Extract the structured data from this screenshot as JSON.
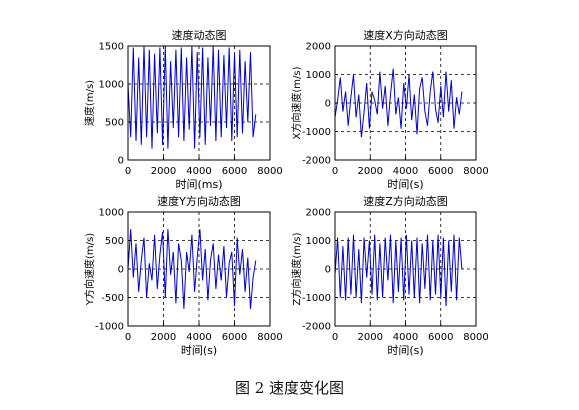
{
  "caption": "图 2  速度变化图",
  "chart_data": [
    {
      "type": "line",
      "title": "速度动态图",
      "xlabel": "时间(ms)",
      "ylabel": "速度(m/s)",
      "xlim": [
        0,
        8000
      ],
      "ylim": [
        0,
        1500
      ],
      "xticks": [
        0,
        2000,
        4000,
        6000,
        8000
      ],
      "yticks": [
        0,
        500,
        1000,
        1500
      ],
      "grid": "dashed",
      "series": [
        {
          "color": "#0000cc",
          "x": [
            0,
            150,
            300,
            450,
            600,
            750,
            900,
            1050,
            1200,
            1350,
            1500,
            1650,
            1800,
            1950,
            2100,
            2250,
            2400,
            2550,
            2700,
            2850,
            3000,
            3150,
            3300,
            3450,
            3600,
            3750,
            3900,
            4050,
            4200,
            4350,
            4500,
            4650,
            4800,
            4950,
            5100,
            5250,
            5400,
            5550,
            5700,
            5850,
            6000,
            6150,
            6300,
            6450,
            6600,
            6750,
            6900,
            7050,
            7200
          ],
          "y": [
            1000,
            300,
            1480,
            250,
            1350,
            200,
            1500,
            300,
            1450,
            150,
            1400,
            350,
            1480,
            200,
            1500,
            150,
            1300,
            420,
            1450,
            300,
            1480,
            250,
            1350,
            400,
            1500,
            150,
            1420,
            300,
            1480,
            200,
            1350,
            450,
            1500,
            250,
            1450,
            300,
            1380,
            420,
            1480,
            250,
            1400,
            300,
            1450,
            350,
            1300,
            500,
            1420,
            300,
            600
          ]
        }
      ]
    },
    {
      "type": "line",
      "title": "速度X方向动态图",
      "xlabel": "时间(s)",
      "ylabel": "X方向速度(m/s)",
      "xlim": [
        0,
        8000
      ],
      "ylim": [
        -2000,
        2000
      ],
      "xticks": [
        0,
        2000,
        4000,
        6000,
        8000
      ],
      "yticks": [
        -2000,
        -1000,
        0,
        1000,
        2000
      ],
      "grid": "dashed",
      "series": [
        {
          "color": "#0000cc",
          "x": [
            0,
            150,
            300,
            450,
            600,
            750,
            900,
            1050,
            1200,
            1350,
            1500,
            1650,
            1800,
            1950,
            2100,
            2250,
            2400,
            2550,
            2700,
            2850,
            3000,
            3150,
            3300,
            3450,
            3600,
            3750,
            3900,
            4050,
            4200,
            4350,
            4500,
            4650,
            4800,
            4950,
            5100,
            5250,
            5400,
            5550,
            5700,
            5850,
            6000,
            6150,
            6300,
            6450,
            6600,
            6750,
            6900,
            7050,
            7200
          ],
          "y": [
            -500,
            100,
            900,
            -300,
            400,
            -800,
            200,
            1000,
            -500,
            300,
            -1200,
            -300,
            700,
            -900,
            400,
            100,
            -400,
            1100,
            -200,
            600,
            -800,
            300,
            1200,
            -400,
            200,
            -900,
            700,
            -200,
            1000,
            -600,
            300,
            -1100,
            500,
            900,
            -300,
            -800,
            400,
            1100,
            -200,
            -700,
            600,
            -500,
            1100,
            -300,
            800,
            -900,
            200,
            -400,
            400
          ]
        }
      ]
    },
    {
      "type": "line",
      "title": "速度Y方向动态图",
      "xlabel": "时间(s)",
      "ylabel": "Y方向速度(m/s)",
      "xlim": [
        0,
        8000
      ],
      "ylim": [
        -1000,
        1000
      ],
      "xticks": [
        0,
        2000,
        4000,
        6000,
        8000
      ],
      "yticks": [
        -1000,
        -500,
        0,
        500,
        1000
      ],
      "grid": "dashed",
      "series": [
        {
          "color": "#0000cc",
          "x": [
            0,
            150,
            300,
            450,
            600,
            750,
            900,
            1050,
            1200,
            1350,
            1500,
            1650,
            1800,
            1950,
            2100,
            2250,
            2400,
            2550,
            2700,
            2850,
            3000,
            3150,
            3300,
            3450,
            3600,
            3750,
            3900,
            4050,
            4200,
            4350,
            4500,
            4650,
            4800,
            4950,
            5100,
            5250,
            5400,
            5550,
            5700,
            5850,
            6000,
            6150,
            6300,
            6450,
            6600,
            6750,
            6900,
            7050,
            7200
          ],
          "y": [
            0,
            700,
            -150,
            450,
            -400,
            150,
            550,
            -500,
            100,
            -200,
            600,
            -350,
            250,
            650,
            -500,
            700,
            -100,
            300,
            -600,
            450,
            150,
            -700,
            300,
            -50,
            600,
            -400,
            200,
            700,
            -200,
            350,
            -550,
            150,
            450,
            -350,
            250,
            -200,
            400,
            -500,
            100,
            300,
            -650,
            550,
            -100,
            350,
            -400,
            200,
            -700,
            -150,
            150
          ]
        }
      ]
    },
    {
      "type": "line",
      "title": "速度Z方向动态图",
      "xlabel": "时间(s)",
      "ylabel": "Z方向速度(m/s)",
      "xlim": [
        0,
        8000
      ],
      "ylim": [
        -2000,
        2000
      ],
      "xticks": [
        0,
        2000,
        4000,
        6000,
        8000
      ],
      "yticks": [
        -2000,
        -1000,
        0,
        1000,
        2000
      ],
      "grid": "dashed",
      "series": [
        {
          "color": "#0000cc",
          "x": [
            0,
            150,
            300,
            450,
            600,
            750,
            900,
            1050,
            1200,
            1350,
            1500,
            1650,
            1800,
            1950,
            2100,
            2250,
            2400,
            2550,
            2700,
            2850,
            3000,
            3150,
            3300,
            3450,
            3600,
            3750,
            3900,
            4050,
            4200,
            4350,
            4500,
            4650,
            4800,
            4950,
            5100,
            5250,
            5400,
            5550,
            5700,
            5850,
            6000,
            6150,
            6300,
            6450,
            6600,
            6750,
            6900,
            7050,
            7200
          ],
          "y": [
            -200,
            1100,
            -1000,
            800,
            -1100,
            1100,
            -900,
            1200,
            -1000,
            700,
            -1200,
            1100,
            -300,
            1000,
            -900,
            1200,
            -1100,
            900,
            -1000,
            1100,
            -400,
            1200,
            -1200,
            1000,
            -800,
            1100,
            -1100,
            1200,
            -900,
            1000,
            -1000,
            1100,
            -1200,
            900,
            -700,
            1200,
            -1100,
            1000,
            -900,
            1200,
            -1000,
            1100,
            -1300,
            1000,
            -800,
            1200,
            -1100,
            1100,
            0
          ]
        }
      ]
    }
  ]
}
